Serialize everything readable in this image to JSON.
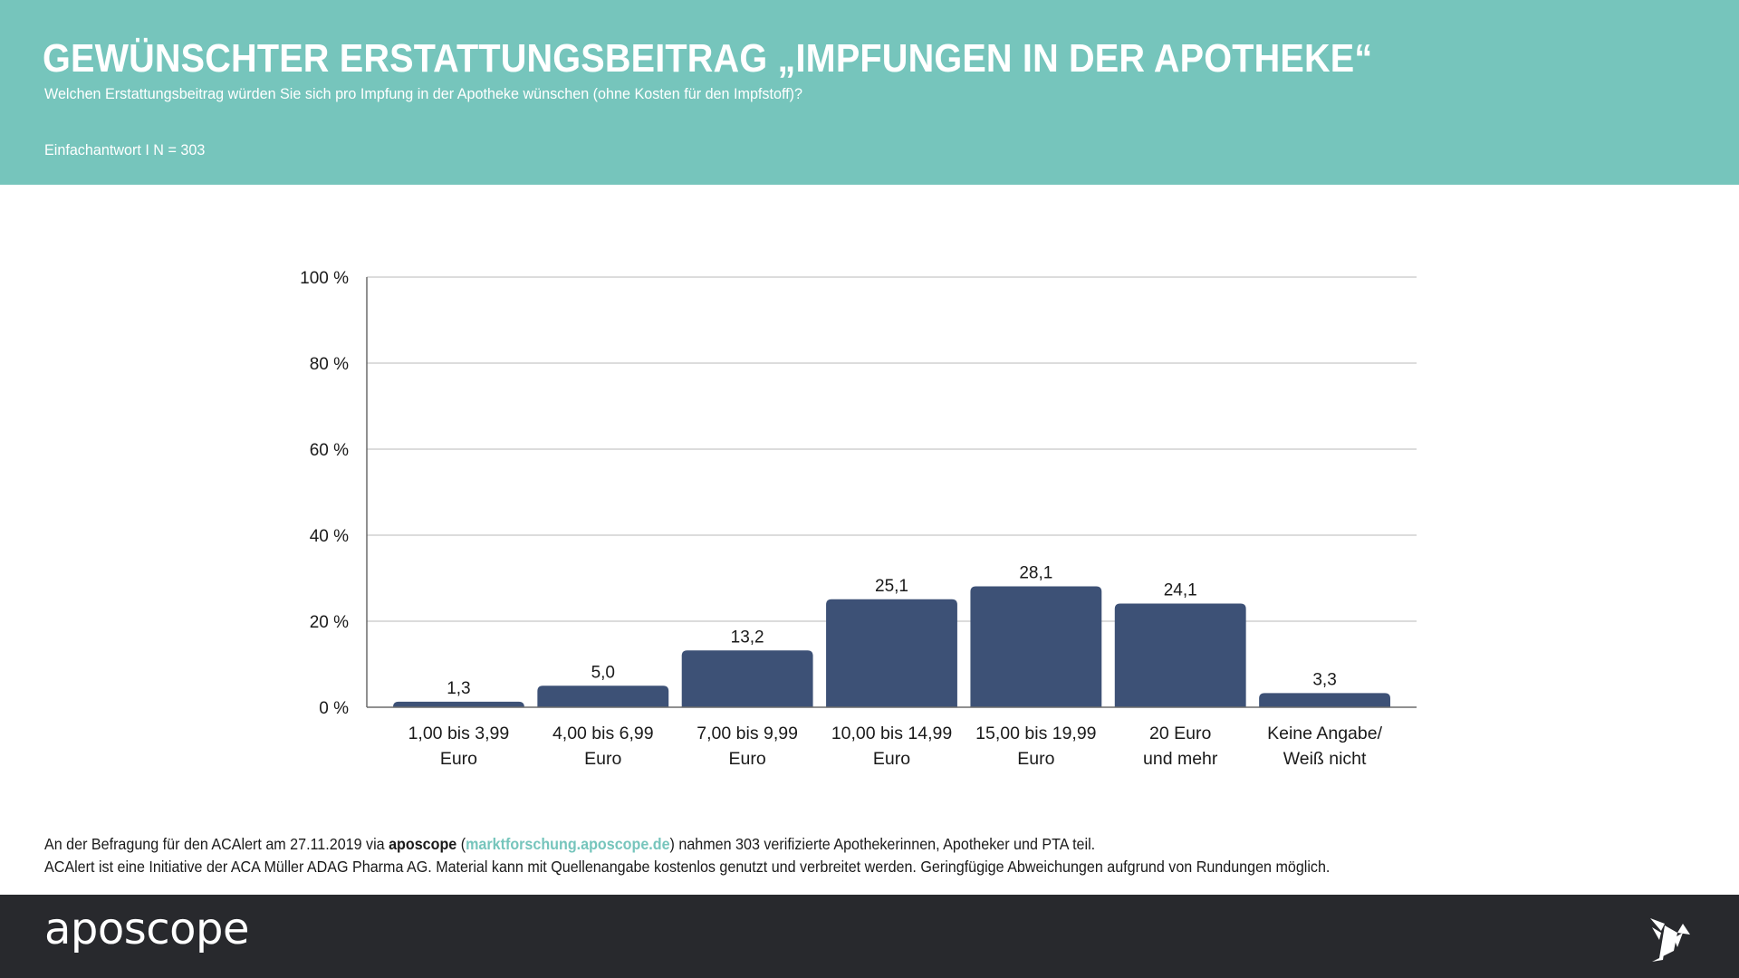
{
  "header": {
    "title": "GEWÜNSCHTER ERSTATTUNGSBEITRAG „IMPFUNGEN IN DER APOTHEKE“",
    "question": "Welchen Erstattungsbeitrag würden Sie sich pro Impfung in der Apotheke wünschen (ohne Kosten für den Impfstoff)?",
    "meta": "Einfachantwort I N = 303"
  },
  "colors": {
    "header_bg": "#76c5bc",
    "bar": "#3d5176",
    "footer_bg": "#28292d",
    "link": "#76c5bc"
  },
  "chart_data": {
    "type": "bar",
    "title": "",
    "xlabel": "",
    "ylabel": "",
    "ylim": [
      0,
      100
    ],
    "yticks": [
      0,
      20,
      40,
      60,
      80,
      100
    ],
    "ytick_labels": [
      "0 %",
      "20 %",
      "40 %",
      "60 %",
      "80 %",
      "100 %"
    ],
    "grid": true,
    "legend": "none",
    "categories": [
      [
        "1,00 bis 3,99",
        "Euro"
      ],
      [
        "4,00 bis 6,99",
        "Euro"
      ],
      [
        "7,00 bis 9,99",
        "Euro"
      ],
      [
        "10,00 bis 14,99",
        "Euro"
      ],
      [
        "15,00 bis 19,99",
        "Euro"
      ],
      [
        "20 Euro",
        "und mehr"
      ],
      [
        "Keine Angabe/",
        "Weiß nicht"
      ]
    ],
    "values": [
      1.3,
      5.0,
      13.2,
      25.1,
      28.1,
      24.1,
      3.3
    ],
    "value_labels": [
      "1,3",
      "5,0",
      "13,2",
      "25,1",
      "28,1",
      "24,1",
      "3,3"
    ]
  },
  "notes": {
    "line1_prefix": "An der Befragung für den ACAlert am 27.11.2019 via ",
    "line1_brand": "aposcope",
    "line1_paren_open": " (",
    "line1_link": "marktforschung.aposcope.de",
    "line1_suffix": ") nahmen 303 verifizierte Apothekerinnen, Apotheker und PTA teil.",
    "line2": "ACAlert ist eine Initiative der ACA Müller ADAG Pharma AG. Material kann mit Quellenangabe kostenlos genutzt und verbreitet werden. Geringfügige Abweichungen aufgrund von Rundungen möglich."
  },
  "footer": {
    "brand": "aposcope",
    "logo_icon": "origami-bird-icon"
  }
}
